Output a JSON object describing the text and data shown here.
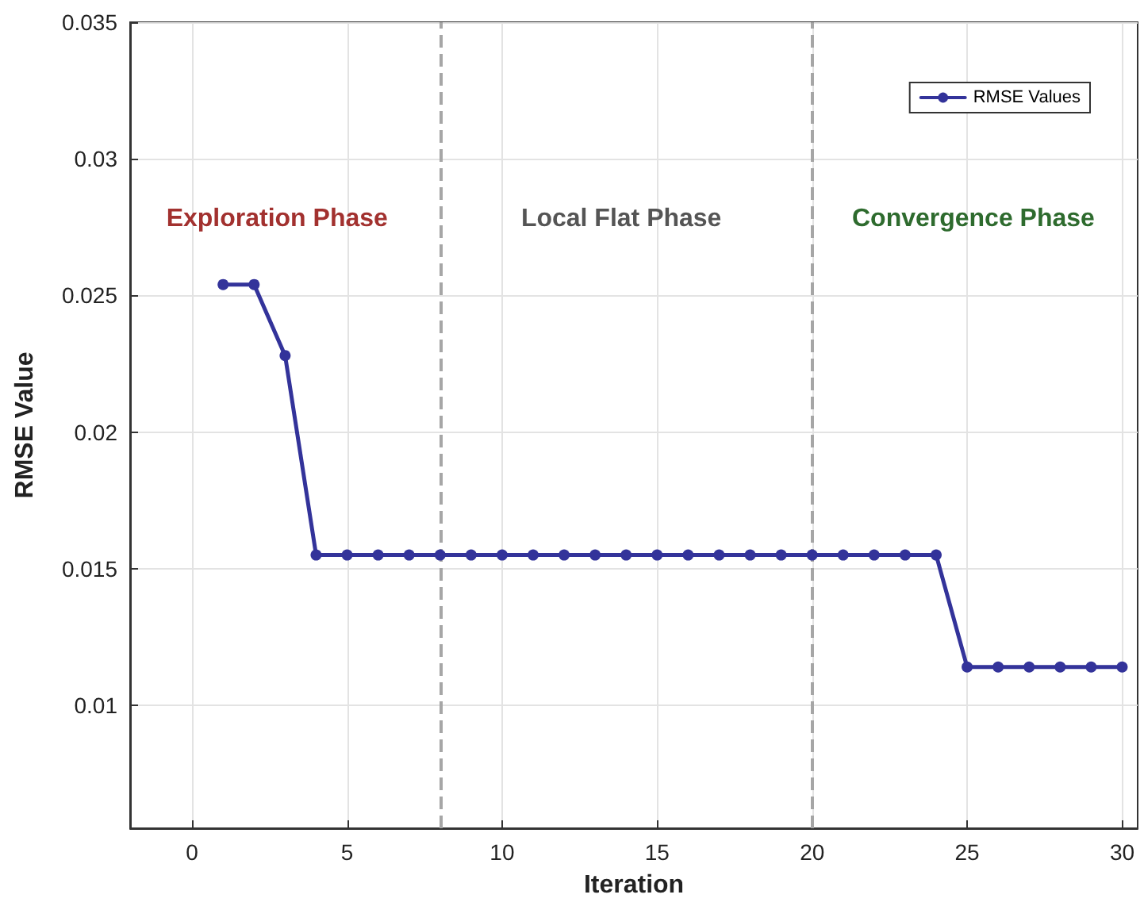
{
  "chart_data": {
    "type": "line",
    "xlabel": "Iteration",
    "ylabel": "RMSE Value",
    "x": [
      1,
      2,
      3,
      4,
      5,
      6,
      7,
      8,
      9,
      10,
      11,
      12,
      13,
      14,
      15,
      16,
      17,
      18,
      19,
      20,
      21,
      22,
      23,
      24,
      25,
      26,
      27,
      28,
      29,
      30
    ],
    "series": [
      {
        "name": "RMSE Values",
        "color": "#33339a",
        "values": [
          0.0254,
          0.0254,
          0.0228,
          0.0155,
          0.0155,
          0.0155,
          0.0155,
          0.0155,
          0.0155,
          0.0155,
          0.0155,
          0.0155,
          0.0155,
          0.0155,
          0.0155,
          0.0155,
          0.0155,
          0.0155,
          0.0155,
          0.0155,
          0.0155,
          0.0155,
          0.0155,
          0.0155,
          0.0114,
          0.0114,
          0.0114,
          0.0114,
          0.0114,
          0.0114
        ]
      }
    ],
    "xlim": [
      -2,
      30.5
    ],
    "xticks": [
      0,
      5,
      10,
      15,
      20,
      25,
      30
    ],
    "ylim": [
      0.0055,
      0.035
    ],
    "yticks": [
      0.01,
      0.015,
      0.02,
      0.025,
      0.03,
      0.035
    ],
    "ref_lines": [
      {
        "axis": "x",
        "value": 8,
        "color": "#a6a6a6",
        "line_style": "dashed"
      },
      {
        "axis": "x",
        "value": 20,
        "color": "#a6a6a6",
        "line_style": "dashed"
      }
    ],
    "annotations": [
      "Exploration Phase",
      "Local Flat Phase",
      "Convergence Phase"
    ],
    "grid": true,
    "legend": "top right",
    "marker": "circle",
    "line_style": "solid"
  }
}
